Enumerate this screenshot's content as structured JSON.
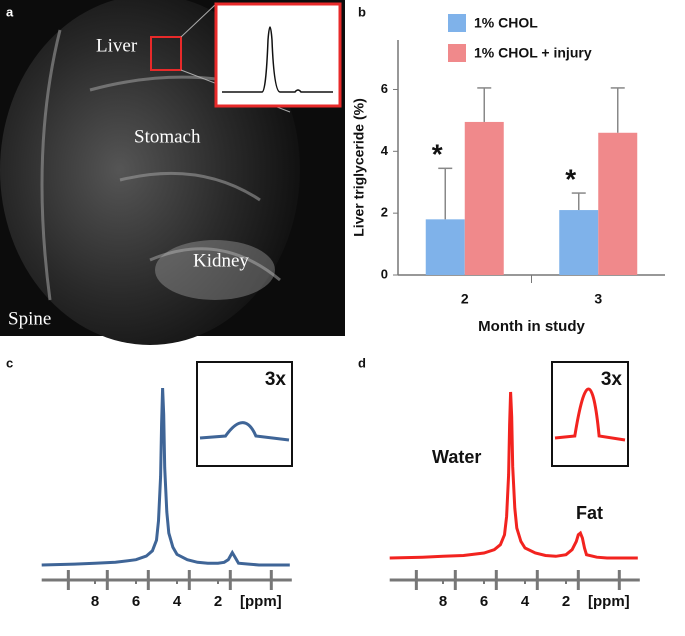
{
  "panel_labels": [
    "a",
    "b",
    "c",
    "d"
  ],
  "image": {
    "labels": [
      "Liver",
      "Stomach",
      "Kidney",
      "Spine"
    ]
  },
  "chart_data": [
    {
      "type": "bar",
      "ylabel": "Liver triglyceride (%)",
      "xlabel": "Month in study",
      "categories": [
        "2",
        "3"
      ],
      "series": [
        {
          "name": "1% CHOL",
          "color": "#7fb2ea",
          "values": [
            1.8,
            2.1
          ],
          "errors": [
            1.65,
            0.55
          ]
        },
        {
          "name": "1% CHOL + injury",
          "color": "#f0898b",
          "values": [
            4.95,
            4.6
          ],
          "errors": [
            1.1,
            1.45
          ]
        }
      ],
      "annotations": [
        "*",
        "*"
      ],
      "ylim": [
        0,
        7.6
      ],
      "yticks": [
        0,
        2,
        4,
        6
      ]
    },
    {
      "type": "line",
      "x": [
        10.6,
        9,
        8,
        7,
        6,
        5.5,
        5.2,
        5.0,
        4.9,
        4.8,
        4.75,
        4.7,
        4.65,
        4.6,
        4.5,
        4.4,
        4.2,
        4,
        3.5,
        3,
        2.5,
        2,
        1.7,
        1.5,
        1.4,
        1.3,
        1.2,
        1.1,
        1,
        0.5,
        0,
        -0.5,
        -1.5
      ],
      "series": [
        {
          "color": "#3f6597",
          "values": [
            0,
            0.5,
            1,
            1.5,
            3,
            5,
            8,
            14,
            25,
            50,
            80,
            100,
            85,
            55,
            30,
            18,
            10,
            6,
            3,
            1.5,
            1,
            1,
            1.5,
            3,
            5,
            7,
            5,
            3,
            1,
            0.5,
            0,
            0,
            0
          ]
        }
      ],
      "xlim": [
        10.6,
        -1.6
      ],
      "ylim": [
        0,
        100
      ],
      "xticks": [
        8,
        6,
        4,
        2
      ],
      "minor_xticks": [
        9.3,
        7.4,
        5.4,
        3.4,
        1.4,
        -0.6
      ],
      "xlabel": "[ppm]",
      "inset_label": "3x"
    },
    {
      "type": "line",
      "x": [
        10.6,
        9,
        8,
        7,
        6,
        5.5,
        5.2,
        5.0,
        4.9,
        4.8,
        4.75,
        4.7,
        4.65,
        4.6,
        4.5,
        4.4,
        4.2,
        4,
        3.5,
        3,
        2.5,
        2,
        1.7,
        1.5,
        1.4,
        1.3,
        1.2,
        1.1,
        1,
        0.5,
        0,
        -0.5,
        -1.5
      ],
      "series": [
        {
          "color": "#f2231f",
          "values": [
            0,
            0.5,
            1,
            1.5,
            3,
            5,
            8,
            14,
            25,
            50,
            80,
            100,
            85,
            55,
            30,
            18,
            10,
            6,
            3,
            1.5,
            1,
            2,
            5,
            10,
            14,
            15,
            12,
            6,
            2,
            0.5,
            0,
            0,
            0
          ]
        }
      ],
      "xlim": [
        10.6,
        -1.6
      ],
      "ylim": [
        0,
        100
      ],
      "xticks": [
        8,
        6,
        4,
        2
      ],
      "minor_xticks": [
        9.3,
        7.4,
        5.4,
        3.4,
        1.4,
        -0.6
      ],
      "xlabel": "[ppm]",
      "inset_label": "3x",
      "annotations": [
        "Water",
        "Fat"
      ]
    }
  ]
}
